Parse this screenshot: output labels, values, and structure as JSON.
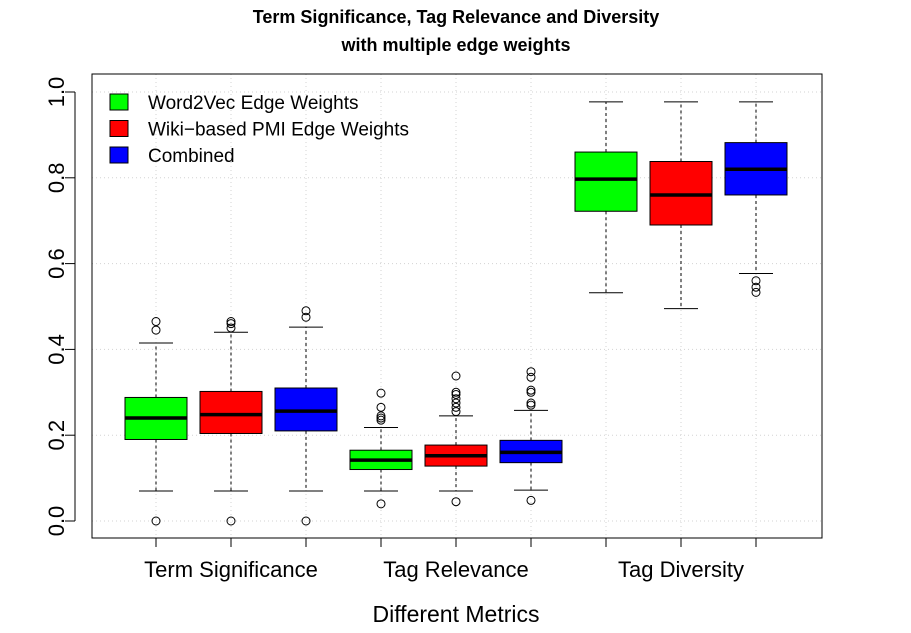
{
  "chart_data": {
    "type": "box",
    "title": "Term Significance, Tag Relevance and Diversity",
    "subtitle": "with multiple edge weights",
    "xlabel": "Different Metrics",
    "ylabel": "",
    "ylim": [
      0,
      1
    ],
    "yticks": [
      "0.0",
      "0.2",
      "0.4",
      "0.6",
      "0.8",
      "1.0"
    ],
    "grid": true,
    "legend_position": "top-left",
    "categories": [
      "Term Significance",
      "Tag Relevance",
      "Tag Diversity"
    ],
    "series": [
      {
        "name": "Word2Vec Edge Weights",
        "color": "#00ff00"
      },
      {
        "name": "Wiki−based PMI Edge Weights",
        "color": "#ff0000"
      },
      {
        "name": "Combined",
        "color": "#0000ff"
      }
    ],
    "boxes": [
      {
        "category": 0,
        "series": 0,
        "whisker_low": 0.07,
        "q1": 0.19,
        "median": 0.24,
        "q3": 0.288,
        "whisker_high": 0.415,
        "outliers": [
          0.0,
          0.445,
          0.465
        ]
      },
      {
        "category": 0,
        "series": 1,
        "whisker_low": 0.07,
        "q1": 0.204,
        "median": 0.248,
        "q3": 0.302,
        "whisker_high": 0.44,
        "outliers": [
          0.0,
          0.45,
          0.46,
          0.465
        ]
      },
      {
        "category": 0,
        "series": 2,
        "whisker_low": 0.07,
        "q1": 0.21,
        "median": 0.256,
        "q3": 0.31,
        "whisker_high": 0.452,
        "outliers": [
          0.0,
          0.475,
          0.49
        ]
      },
      {
        "category": 1,
        "series": 0,
        "whisker_low": 0.07,
        "q1": 0.12,
        "median": 0.142,
        "q3": 0.165,
        "whisker_high": 0.218,
        "outliers": [
          0.04,
          0.235,
          0.24,
          0.245,
          0.265,
          0.298
        ]
      },
      {
        "category": 1,
        "series": 1,
        "whisker_low": 0.07,
        "q1": 0.128,
        "median": 0.152,
        "q3": 0.177,
        "whisker_high": 0.245,
        "outliers": [
          0.045,
          0.255,
          0.265,
          0.275,
          0.285,
          0.295,
          0.3,
          0.338
        ]
      },
      {
        "category": 1,
        "series": 2,
        "whisker_low": 0.072,
        "q1": 0.136,
        "median": 0.16,
        "q3": 0.188,
        "whisker_high": 0.258,
        "outliers": [
          0.048,
          0.27,
          0.275,
          0.3,
          0.305,
          0.335,
          0.348
        ]
      },
      {
        "category": 2,
        "series": 0,
        "whisker_low": 0.532,
        "q1": 0.722,
        "median": 0.797,
        "q3": 0.86,
        "whisker_high": 0.977,
        "outliers": []
      },
      {
        "category": 2,
        "series": 1,
        "whisker_low": 0.495,
        "q1": 0.69,
        "median": 0.76,
        "q3": 0.838,
        "whisker_high": 0.977,
        "outliers": []
      },
      {
        "category": 2,
        "series": 2,
        "whisker_low": 0.577,
        "q1": 0.76,
        "median": 0.82,
        "q3": 0.882,
        "whisker_high": 0.977,
        "outliers": [
          0.533,
          0.545,
          0.56
        ]
      }
    ]
  }
}
